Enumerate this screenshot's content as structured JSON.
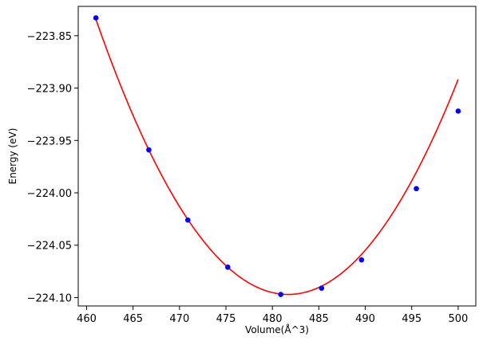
{
  "chart_data": {
    "type": "scatter",
    "xlabel": "Volume(Å^3)",
    "ylabel": "Energy (eV)",
    "xlim": [
      459.1,
      501.9
    ],
    "ylim": [
      -224.108,
      -223.822
    ],
    "xticks": [
      460,
      465,
      470,
      475,
      480,
      485,
      490,
      495,
      500
    ],
    "yticks": [
      -223.85,
      -223.9,
      -223.95,
      -224.0,
      -224.05,
      -224.1
    ],
    "xtick_labels": [
      "460",
      "465",
      "470",
      "475",
      "480",
      "485",
      "490",
      "495",
      "500"
    ],
    "ytick_labels": [
      "−223.85",
      "−223.90",
      "−223.95",
      "−224.00",
      "−224.05",
      "−224.10"
    ],
    "grid": false,
    "series": [
      {
        "kind": "points",
        "color": "#0000ff",
        "x": [
          461.0,
          466.7,
          470.9,
          475.2,
          480.9,
          485.3,
          489.6,
          495.5,
          500.0
        ],
        "y": [
          -223.833,
          -223.959,
          -224.026,
          -224.071,
          -224.097,
          -224.091,
          -224.064,
          -223.996,
          -223.922
        ]
      },
      {
        "kind": "fit-curve",
        "color": "#ff0000",
        "x_range": [
          461.0,
          500.0
        ],
        "vertex_x": 481.7,
        "vertex_y": -224.097,
        "curvature": 0.000613
      }
    ]
  }
}
